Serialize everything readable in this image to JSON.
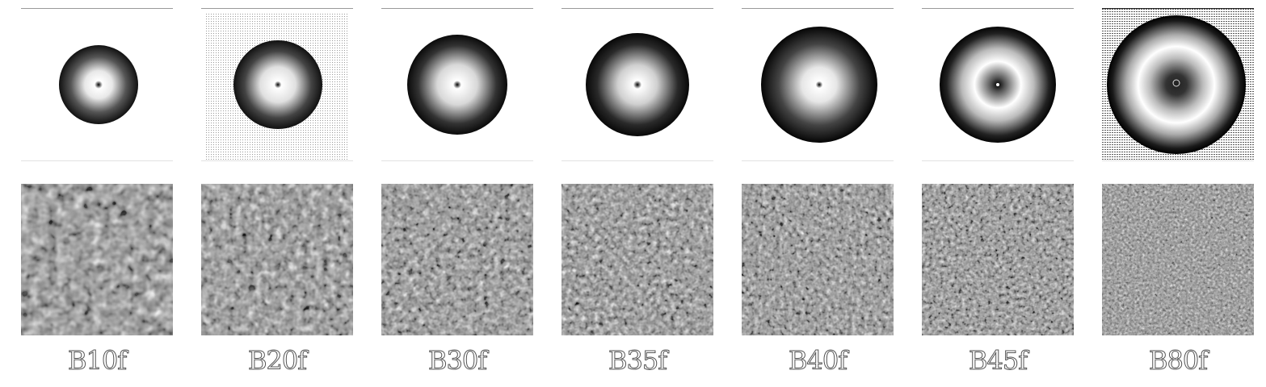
{
  "panels": [
    {
      "label": "B10f"
    },
    {
      "label": "B20f"
    },
    {
      "label": "B30f"
    },
    {
      "label": "B35f"
    },
    {
      "label": "B40f"
    },
    {
      "label": "B45f"
    },
    {
      "label": "B80f"
    }
  ]
}
